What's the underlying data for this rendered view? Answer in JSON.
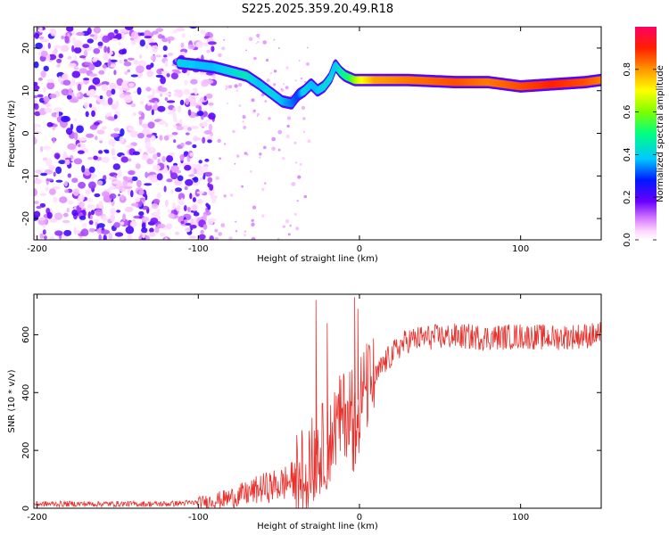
{
  "title": "S225.2025.359.20.49.R18",
  "chart_data": [
    {
      "type": "heatmap",
      "name": "spectrogram",
      "title": "S225.2025.359.20.49.R18",
      "xlabel": "Height of straight line (km)",
      "ylabel": "Frequency (Hz)",
      "xlim": [
        -202,
        150
      ],
      "ylim": [
        -25,
        25
      ],
      "xticks": [
        -200,
        -100,
        0,
        100
      ],
      "yticks": [
        -20,
        -10,
        0,
        10,
        20
      ],
      "colorbar": {
        "label": "Normalized spectral amplitude",
        "range": [
          0.0,
          1.0
        ],
        "ticks": [
          0.0,
          0.2,
          0.4,
          0.6,
          0.8
        ],
        "tick_labels": [
          "0.0",
          "0.2",
          "0.4",
          "0.6",
          "0.8"
        ]
      },
      "noise_region_x": [
        -202,
        -90
      ],
      "ridge": {
        "x": [
          -112,
          -100,
          -90,
          -80,
          -70,
          -62,
          -55,
          -48,
          -42,
          -38,
          -34,
          -30,
          -26,
          -22,
          -18,
          -15,
          -12,
          -9,
          -6,
          -3,
          0,
          10,
          30,
          60,
          80,
          100,
          120,
          140,
          150
        ],
        "freq": [
          16.5,
          16,
          15.5,
          14.5,
          13.5,
          11.5,
          9.5,
          7.5,
          7,
          9,
          10,
          11.5,
          10,
          11,
          13,
          16,
          14.5,
          13.5,
          13,
          12.5,
          12.5,
          12.5,
          12.5,
          12,
          12,
          11,
          11.5,
          12,
          12.5
        ],
        "amp": [
          0.35,
          0.3,
          0.3,
          0.35,
          0.4,
          0.3,
          0.35,
          0.3,
          0.25,
          0.2,
          0.35,
          0.3,
          0.3,
          0.35,
          0.35,
          0.3,
          0.4,
          0.45,
          0.5,
          0.6,
          0.7,
          0.85,
          0.9,
          0.95,
          0.9,
          0.95,
          1.0,
          0.95,
          0.9
        ]
      }
    },
    {
      "type": "line",
      "name": "snr",
      "xlabel": "Height of straight line (km)",
      "ylabel": "SNR (10 * v/v)",
      "xlim": [
        -202,
        150
      ],
      "ylim": [
        0,
        740
      ],
      "xticks": [
        -200,
        -100,
        0,
        100
      ],
      "yticks": [
        0,
        200,
        400,
        600
      ],
      "color": "#e8322e",
      "envelope": {
        "x": [
          -202,
          -120,
          -100,
          -85,
          -70,
          -60,
          -50,
          -40,
          -35,
          -30,
          -25,
          -20,
          -15,
          -10,
          -5,
          0,
          5,
          10,
          15,
          20,
          25,
          30,
          40,
          60,
          80,
          100,
          120,
          150
        ],
        "snr": [
          15,
          15,
          20,
          30,
          50,
          70,
          80,
          100,
          130,
          160,
          200,
          220,
          280,
          320,
          360,
          380,
          420,
          450,
          500,
          530,
          560,
          580,
          590,
          595,
          590,
          595,
          590,
          600
        ]
      },
      "spikes": [
        {
          "x": -27,
          "snr": 720
        },
        {
          "x": -20,
          "snr": 640
        },
        {
          "x": -3,
          "snr": 730
        },
        {
          "x": -1,
          "snr": 690
        },
        {
          "x": 150,
          "snr": 650
        }
      ]
    }
  ]
}
